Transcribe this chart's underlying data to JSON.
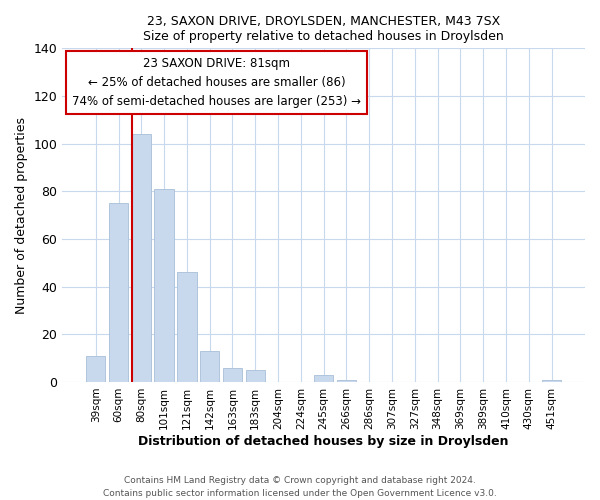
{
  "title1": "23, SAXON DRIVE, DROYLSDEN, MANCHESTER, M43 7SX",
  "title2": "Size of property relative to detached houses in Droylsden",
  "xlabel": "Distribution of detached houses by size in Droylsden",
  "ylabel": "Number of detached properties",
  "footer1": "Contains HM Land Registry data © Crown copyright and database right 2024.",
  "footer2": "Contains public sector information licensed under the Open Government Licence v3.0.",
  "bar_labels": [
    "39sqm",
    "60sqm",
    "80sqm",
    "101sqm",
    "121sqm",
    "142sqm",
    "163sqm",
    "183sqm",
    "204sqm",
    "224sqm",
    "245sqm",
    "266sqm",
    "286sqm",
    "307sqm",
    "327sqm",
    "348sqm",
    "369sqm",
    "389sqm",
    "410sqm",
    "430sqm",
    "451sqm"
  ],
  "bar_values": [
    11,
    75,
    104,
    81,
    46,
    13,
    6,
    5,
    0,
    0,
    3,
    1,
    0,
    0,
    0,
    0,
    0,
    0,
    0,
    0,
    1
  ],
  "bar_color": "#c8d9ed",
  "bar_edge_color": "#a8bfd8",
  "vline_bar_index": 2,
  "vline_color": "#cc0000",
  "ylim_max": 140,
  "yticks": [
    0,
    20,
    40,
    60,
    80,
    100,
    120,
    140
  ],
  "annotation_title": "23 SAXON DRIVE: 81sqm",
  "annotation_line1": "← 25% of detached houses are smaller (86)",
  "annotation_line2": "74% of semi-detached houses are larger (253) →",
  "annotation_box_facecolor": "#ffffff",
  "annotation_box_edgecolor": "#cc0000",
  "grid_color": "#c8d9ed"
}
